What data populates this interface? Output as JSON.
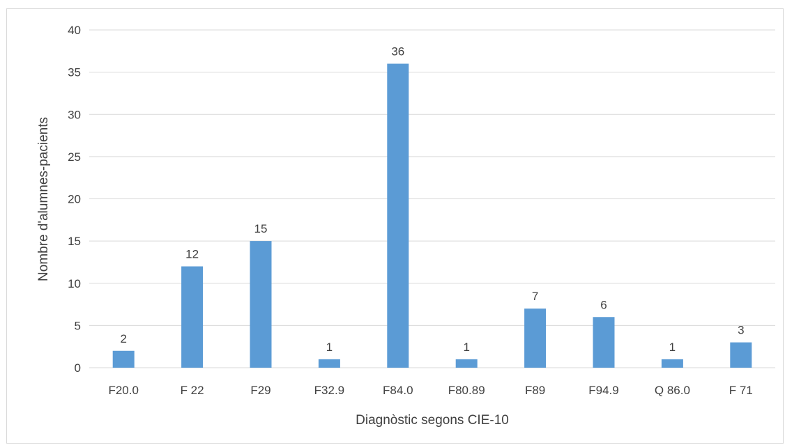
{
  "chart_data": {
    "type": "bar",
    "title": "",
    "xlabel": "Diagnòstic segons CIE-10",
    "ylabel": "Nombre d'alumnes-pacients",
    "categories": [
      "F20.0",
      "F 22",
      "F29",
      "F32.9",
      "F84.0",
      "F80.89",
      "F89",
      "F94.9",
      "Q 86.0",
      "F 71"
    ],
    "values": [
      2,
      12,
      15,
      1,
      36,
      1,
      7,
      6,
      1,
      3
    ],
    "ylim": [
      0,
      40
    ],
    "yticks": [
      0,
      5,
      10,
      15,
      20,
      25,
      30,
      35,
      40
    ],
    "grid": true,
    "legend": "none",
    "data_labels": true,
    "colors": {
      "bar": "#5b9bd5",
      "grid": "#d9d9d9",
      "text": "#404040"
    }
  }
}
